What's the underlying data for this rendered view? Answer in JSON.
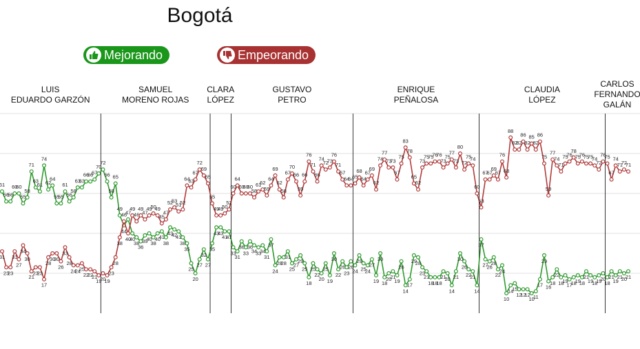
{
  "chart_data": {
    "type": "line",
    "title": "Bogotá",
    "ylim": [
      0,
      100
    ],
    "yticks": [
      20,
      40,
      60,
      80,
      100
    ],
    "grid": true,
    "periods": [
      {
        "name": [
          "LUIS",
          "EDUARDO GARZÓN"
        ],
        "start": 0
      },
      {
        "name": [
          "SAMUEL",
          "MORENO ROJAS"
        ],
        "start": 24
      },
      {
        "name": [
          "CLARA",
          "LÓPEZ"
        ],
        "start": 50
      },
      {
        "name": [
          "GUSTAVO",
          "PETRO"
        ],
        "start": 55
      },
      {
        "name": [
          "ENRIQUE",
          "PEÑALOSA"
        ],
        "start": 84
      },
      {
        "name": [
          "CLAUDIA",
          "LÓPEZ"
        ],
        "start": 114
      },
      {
        "name": [
          "CARLOS",
          "FERNANDO",
          "GALÁN"
        ],
        "start": 144
      }
    ],
    "series": [
      {
        "name": "Mejorando",
        "color": "#2e9a2e",
        "values": [
          61,
          56,
          56,
          60,
          60,
          55,
          58,
          71,
          63,
          61,
          74,
          62,
          64,
          55,
          55,
          61,
          56,
          58,
          63,
          63,
          66,
          66,
          67,
          70,
          72,
          66,
          58,
          65,
          49,
          44,
          47,
          40,
          38,
          36,
          39,
          40,
          38,
          40,
          41,
          38,
          43,
          42,
          41,
          38,
          35,
          25,
          20,
          27,
          32,
          27,
          35,
          43,
          43,
          41,
          41,
          33,
          31,
          36,
          33,
          36,
          34,
          33,
          34,
          31,
          37,
          24,
          28,
          28,
          31,
          25,
          27,
          29,
          25,
          18,
          25,
          22,
          20,
          25,
          19,
          30,
          22,
          26,
          23,
          26,
          24,
          29,
          25,
          24,
          27,
          19,
          30,
          18,
          20,
          21,
          19,
          26,
          14,
          17,
          29,
          28,
          23,
          21,
          18,
          18,
          18,
          21,
          20,
          14,
          21,
          30,
          26,
          22,
          21,
          14,
          37,
          27,
          26,
          28,
          22,
          24,
          10,
          14,
          15,
          12,
          12,
          12,
          10,
          11,
          17,
          29,
          16,
          18,
          22,
          18,
          19,
          17,
          18,
          19,
          18,
          21,
          19,
          18,
          19,
          20,
          18,
          21,
          19,
          21,
          20,
          21
        ]
      },
      {
        "name": "Empeorando",
        "color": "#b03a3a",
        "values": [
          31,
          23,
          23,
          31,
          27,
          34,
          30,
          21,
          23,
          23,
          17,
          28,
          30,
          30,
          26,
          33,
          28,
          24,
          24,
          25,
          22,
          22,
          21,
          19,
          20,
          19,
          23,
          28,
          38,
          46,
          40,
          49,
          46,
          49,
          47,
          49,
          50,
          49,
          45,
          47,
          52,
          53,
          51,
          52,
          64,
          63,
          67,
          72,
          69,
          65,
          55,
          49,
          49,
          50,
          52,
          60,
          64,
          60,
          60,
          60,
          58,
          61,
          62,
          59,
          64,
          69,
          62,
          58,
          67,
          70,
          66,
          59,
          66,
          76,
          71,
          66,
          74,
          72,
          73,
          76,
          71,
          67,
          64,
          64,
          65,
          68,
          64,
          67,
          69,
          62,
          74,
          77,
          73,
          73,
          67,
          75,
          83,
          78,
          65,
          62,
          73,
          75,
          75,
          76,
          76,
          73,
          75,
          77,
          73,
          80,
          72,
          75,
          74,
          60,
          53,
          67,
          67,
          69,
          67,
          76,
          68,
          88,
          82,
          82,
          86,
          82,
          85,
          82,
          86,
          75,
          59,
          77,
          74,
          71,
          75,
          76,
          78,
          75,
          76,
          75,
          75,
          74,
          72,
          76,
          75,
          67,
          74,
          71,
          72,
          71
        ]
      }
    ]
  }
}
